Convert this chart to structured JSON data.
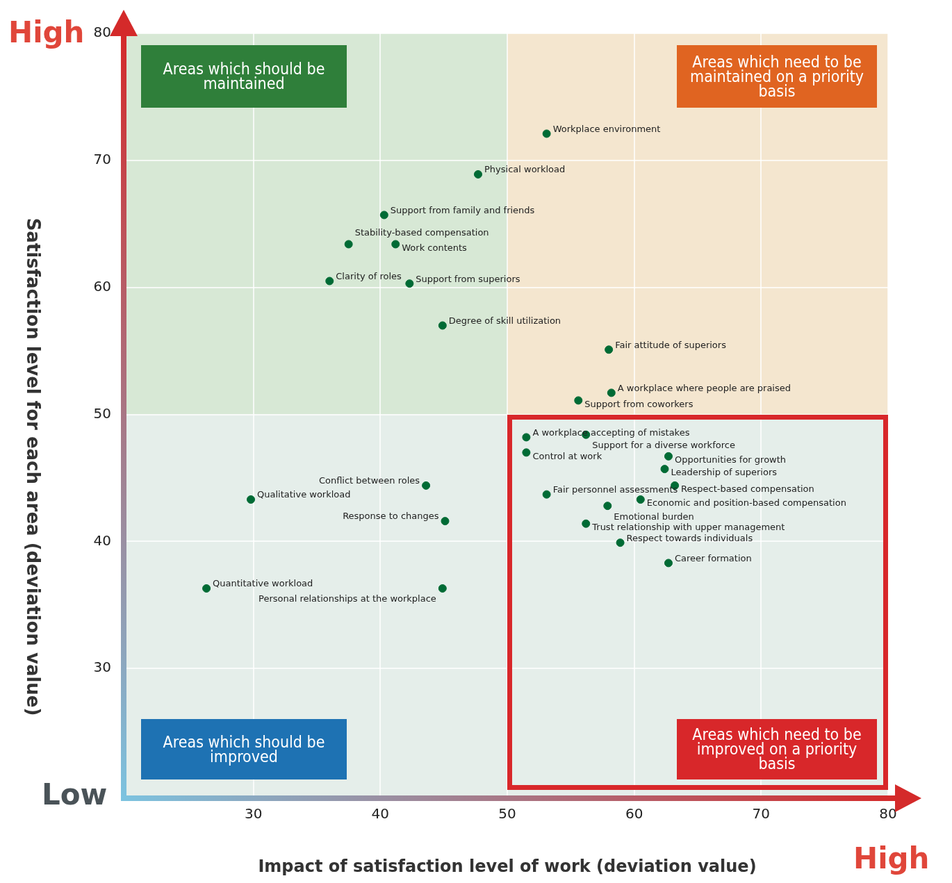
{
  "chart_data": {
    "type": "scatter",
    "xlabel": "Impact of satisfaction level of work (deviation value)",
    "ylabel": "Satisfaction level for each area (deviation value)",
    "xlim": [
      20,
      80
    ],
    "xticks": [
      30,
      40,
      50,
      60,
      70,
      80
    ],
    "ylim": [
      20,
      80
    ],
    "yticks": [
      30,
      40,
      50,
      60,
      70,
      80
    ],
    "grid": true,
    "legend": false,
    "marker": "circle",
    "bands": [
      {
        "axis": "x",
        "from": 50,
        "to": 80,
        "color": "#f4e6cf"
      },
      {
        "axis": "y",
        "from": 20,
        "to": 50,
        "color": "#e5eeea"
      }
    ],
    "annotations": [
      "High",
      "Low",
      "High",
      "Areas which should be maintained",
      "Areas which need to be maintained on a priority basis",
      "Areas which should be improved",
      "Areas which need to be improved on a priority basis"
    ],
    "series": [
      {
        "name": "Workplace environment",
        "color": "#006b35",
        "x": [
          53.1
        ],
        "values": [
          72.1
        ]
      },
      {
        "name": "Physical workload",
        "color": "#006b35",
        "x": [
          47.7
        ],
        "values": [
          68.9
        ]
      },
      {
        "name": "Support from family and friends",
        "color": "#006b35",
        "x": [
          40.3
        ],
        "values": [
          65.7
        ]
      },
      {
        "name": "Stability-based compensation",
        "color": "#006b35",
        "x": [
          37.5
        ],
        "values": [
          63.4
        ]
      },
      {
        "name": "Work contents",
        "color": "#006b35",
        "x": [
          41.2
        ],
        "values": [
          63.4
        ]
      },
      {
        "name": "Clarity of roles",
        "color": "#006b35",
        "x": [
          36.0
        ],
        "values": [
          60.5
        ]
      },
      {
        "name": "Support from superiors",
        "color": "#006b35",
        "x": [
          42.3
        ],
        "values": [
          60.3
        ]
      },
      {
        "name": "Degree of skill utilization",
        "color": "#006b35",
        "x": [
          44.9
        ],
        "values": [
          57.0
        ]
      },
      {
        "name": "Fair attitude of superiors",
        "color": "#006b35",
        "x": [
          58.0
        ],
        "values": [
          55.1
        ]
      },
      {
        "name": "A workplace where people are praised",
        "color": "#006b35",
        "x": [
          58.2
        ],
        "values": [
          51.7
        ]
      },
      {
        "name": "Support from coworkers",
        "color": "#006b35",
        "x": [
          55.6
        ],
        "values": [
          51.1
        ]
      },
      {
        "name": "A workplace accepting of mistakes",
        "color": "#006b35",
        "x": [
          51.5
        ],
        "values": [
          48.2
        ]
      },
      {
        "name": "Support for a diverse workforce",
        "color": "#006b35",
        "x": [
          56.2
        ],
        "values": [
          48.4
        ]
      },
      {
        "name": "Control at work",
        "color": "#006b35",
        "x": [
          51.5
        ],
        "values": [
          47.0
        ]
      },
      {
        "name": "Opportunities for growth",
        "color": "#006b35",
        "x": [
          62.7
        ],
        "values": [
          46.7
        ]
      },
      {
        "name": "Leadership of superiors",
        "color": "#006b35",
        "x": [
          62.4
        ],
        "values": [
          45.7
        ]
      },
      {
        "name": "Respect-based compensation",
        "color": "#006b35",
        "x": [
          63.2
        ],
        "values": [
          44.4
        ]
      },
      {
        "name": "Conflict between roles",
        "color": "#006b35",
        "x": [
          43.6
        ],
        "values": [
          44.4
        ]
      },
      {
        "name": "Qualitative workload",
        "color": "#006b35",
        "x": [
          29.8
        ],
        "values": [
          43.3
        ]
      },
      {
        "name": "Fair personnel assessments",
        "color": "#006b35",
        "x": [
          53.1
        ],
        "values": [
          43.7
        ]
      },
      {
        "name": "Economic and position-based compensation",
        "color": "#006b35",
        "x": [
          60.5
        ],
        "values": [
          43.3
        ]
      },
      {
        "name": "Emotional burden",
        "color": "#006b35",
        "x": [
          57.9
        ],
        "values": [
          42.8
        ]
      },
      {
        "name": "Response to changes",
        "color": "#006b35",
        "x": [
          45.1
        ],
        "values": [
          41.6
        ]
      },
      {
        "name": "Trust relationship with upper management",
        "color": "#006b35",
        "x": [
          56.2
        ],
        "values": [
          41.4
        ]
      },
      {
        "name": "Respect towards individuals",
        "color": "#006b35",
        "x": [
          58.9
        ],
        "values": [
          39.9
        ]
      },
      {
        "name": "Career formation",
        "color": "#006b35",
        "x": [
          62.7
        ],
        "values": [
          38.3
        ]
      },
      {
        "name": "Quantitative workload",
        "color": "#006b35",
        "x": [
          26.3
        ],
        "values": [
          36.3
        ]
      },
      {
        "name": "Personal relationships at the workplace",
        "color": "#006b35",
        "x": [
          44.9
        ],
        "values": [
          36.3
        ]
      }
    ]
  }
}
